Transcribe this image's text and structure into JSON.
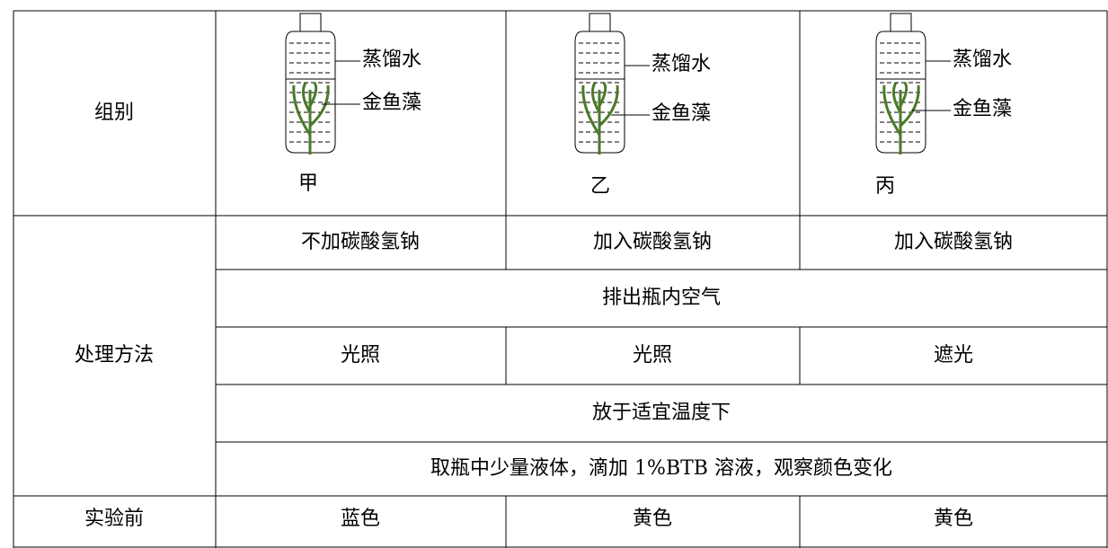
{
  "table": {
    "header": {
      "label": "组别",
      "bottles": [
        {
          "name": "甲",
          "water": "蒸馏水",
          "plant": "金鱼藻"
        },
        {
          "name": "乙",
          "water": "蒸馏水",
          "plant": "金鱼藻"
        },
        {
          "name": "丙",
          "water": "蒸馏水",
          "plant": "金鱼藻"
        }
      ]
    },
    "treatment": {
      "label": "处理方法",
      "rows": [
        [
          "不加碳酸氢钠",
          "加入碳酸氢钠",
          "加入碳酸氢钠"
        ],
        [
          "排出瓶内空气"
        ],
        [
          "光照",
          "光照",
          "遮光"
        ],
        [
          "放于适宜温度下"
        ],
        [
          "取瓶中少量液体，滴加 1%BTB 溶液，观察颜色变化"
        ]
      ]
    },
    "before": [
      "实验前",
      "蓝色",
      "黄色",
      "黄色"
    ]
  }
}
